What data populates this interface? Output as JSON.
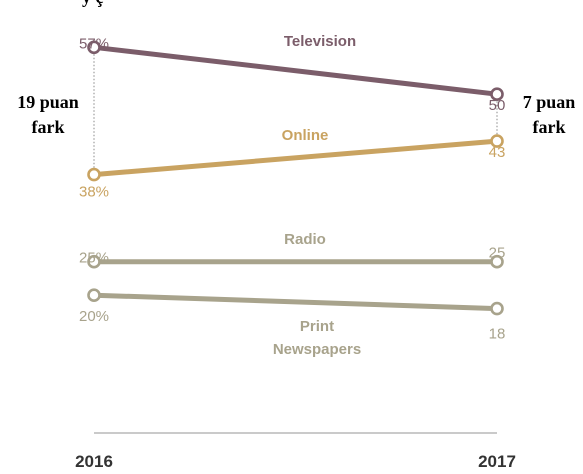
{
  "top_fragment": "y ç",
  "chart_data": {
    "type": "line",
    "x": [
      "2016",
      "2017"
    ],
    "series": [
      {
        "name": "Television",
        "values": [
          57,
          50
        ],
        "labels": [
          "57%",
          "50"
        ],
        "color": "#7b5d6a"
      },
      {
        "name": "Online",
        "values": [
          38,
          43
        ],
        "labels": [
          "38%",
          "43"
        ],
        "color": "#c9a361"
      },
      {
        "name": "Radio",
        "values": [
          25,
          25
        ],
        "labels": [
          "25%",
          "25"
        ],
        "color": "#a8a38c"
      },
      {
        "name": "Print Newspapers",
        "name_lines": [
          "Print",
          "Newspapers"
        ],
        "values": [
          20,
          18
        ],
        "labels": [
          "20%",
          "18"
        ],
        "color": "#a8a38c"
      }
    ],
    "gap_annotations": [
      {
        "x": "2016",
        "lines": [
          "19 puan",
          "fark"
        ]
      },
      {
        "x": "2017",
        "lines": [
          "7 puan",
          "fark"
        ]
      }
    ],
    "axis_color": "#aaaaaa",
    "label_color": "#555555",
    "gridlines": false
  }
}
